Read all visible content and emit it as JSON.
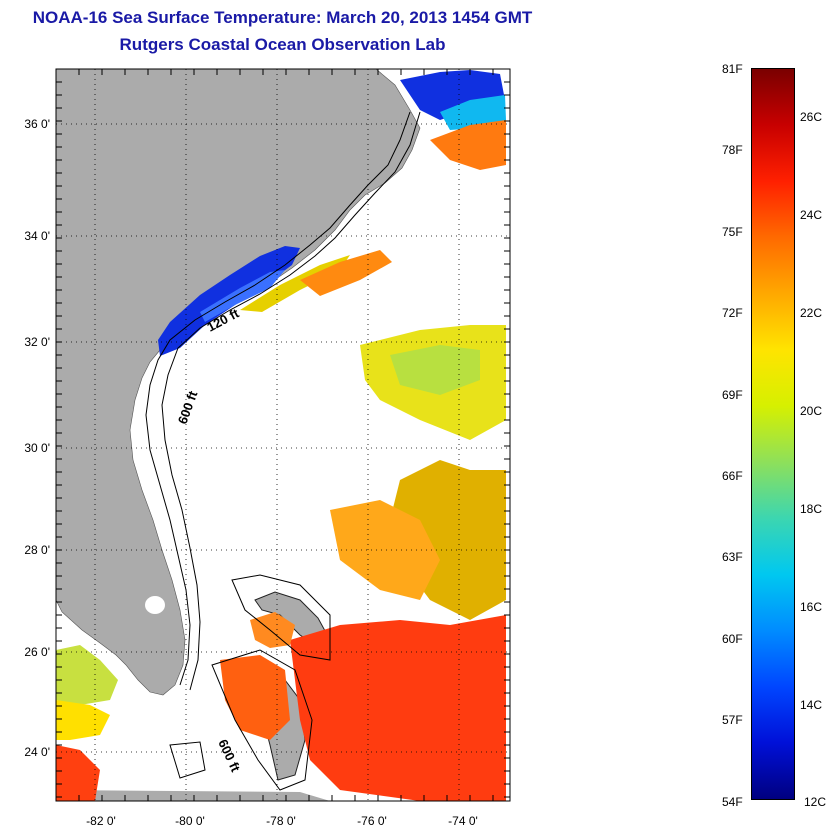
{
  "title": "NOAA-16 Sea Surface Temperature:  March 20, 2013 1454 GMT",
  "subtitle": "Rutgers Coastal Ocean Observation Lab",
  "lat_labels": [
    "36 0'",
    "34 0'",
    "32 0'",
    "30 0'",
    "28 0'",
    "26 0'",
    "24 0'"
  ],
  "lon_labels": [
    "-82 0'",
    "-80 0'",
    "-78 0'",
    "-76 0'",
    "-74 0'"
  ],
  "contours": {
    "c120": "120 ft",
    "c600a": "600 ft",
    "c600b": "600 ft"
  },
  "colorbar": {
    "fahrenheit": [
      "81F",
      "78F",
      "75F",
      "72F",
      "69F",
      "66F",
      "63F",
      "60F",
      "57F",
      "54F"
    ],
    "celsius": [
      "26C",
      "24C",
      "22C",
      "20C",
      "18C",
      "16C",
      "14C",
      "12C"
    ],
    "gradient_colors": [
      "#7a0000",
      "#c80000",
      "#ff2000",
      "#ff6a00",
      "#ffa800",
      "#ffe400",
      "#d6f000",
      "#8ee05a",
      "#3cd6b0",
      "#00c8f0",
      "#008cff",
      "#0046ff",
      "#0010d8",
      "#000080"
    ]
  },
  "land_color": "#ababab"
}
